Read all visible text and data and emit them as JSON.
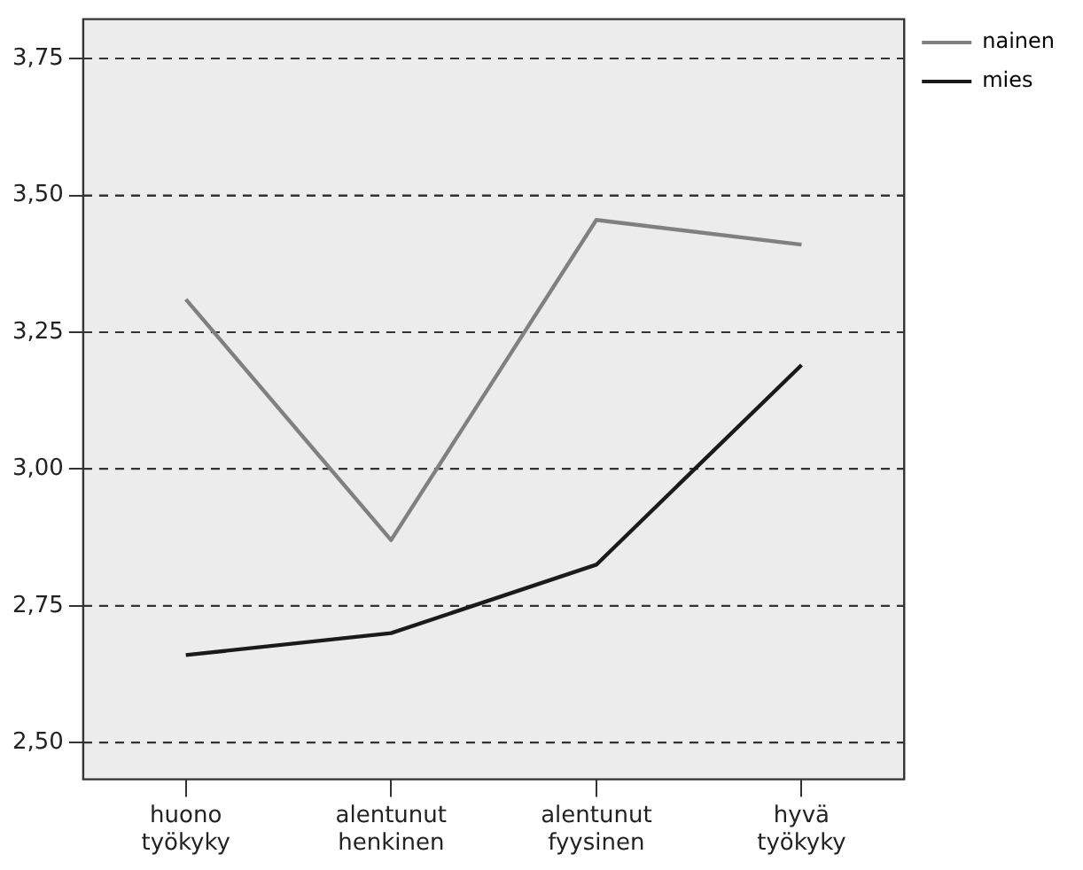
{
  "chart_data": {
    "type": "line",
    "categories": [
      "huono työkyky",
      "alentunut henkinen",
      "alentunut fyysinen",
      "hyvä työkyky"
    ],
    "series": [
      {
        "name": "nainen",
        "color": "#808080",
        "values": [
          3.31,
          2.87,
          3.455,
          3.41
        ]
      },
      {
        "name": "mies",
        "color": "#1a1a1a",
        "values": [
          2.66,
          2.7,
          2.825,
          3.19
        ]
      }
    ],
    "ylim": [
      2.433,
      3.822
    ],
    "yticks": [
      {
        "value": 2.5,
        "label": "2,50"
      },
      {
        "value": 2.75,
        "label": "2,75"
      },
      {
        "value": 3.0,
        "label": "3,00"
      },
      {
        "value": 3.25,
        "label": "3,25"
      },
      {
        "value": 3.5,
        "label": "3,50"
      },
      {
        "value": 3.75,
        "label": "3,75"
      }
    ],
    "grid": "y",
    "legend": "top right",
    "marker": "none",
    "line_style": "solid"
  }
}
